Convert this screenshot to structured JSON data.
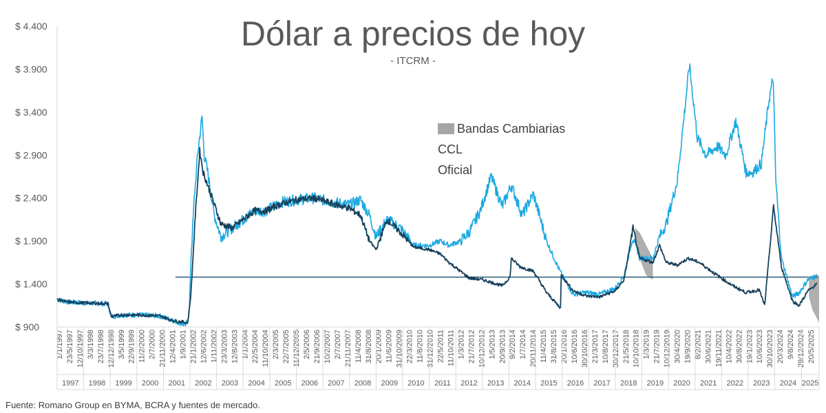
{
  "title": "Dólar a precios de hoy",
  "subtitle": "- ITCRM -",
  "source": "Fuente: Romano Group en BYMA, BCRA y fuentes de mercado.",
  "legend": {
    "band": "Bandas Cambiarias",
    "ccl": "CCL",
    "oficial": "Oficial"
  },
  "colors": {
    "ccl": "#1ba9e1",
    "oficial": "#17415c",
    "band": "#a6a6a6",
    "reference_line": "#1d4e6b",
    "text": "#595959"
  },
  "chart_data": {
    "type": "line",
    "title": "Dólar a precios de hoy",
    "subtitle": "- ITCRM -",
    "ylim": [
      900,
      4400
    ],
    "y_ticks": [
      "$ 900",
      "$ 1.400",
      "$ 1.900",
      "$ 2.400",
      "$ 2.900",
      "$ 3.400",
      "$ 3.900",
      "$ 4.400"
    ],
    "x_range": [
      "1997-01-01",
      "2025-09-01"
    ],
    "x_tick_labels": [
      "1/1/1997",
      "23/5/1997",
      "12/10/1997",
      "3/3/1998",
      "23/7/1998",
      "12/12/1998",
      "3/5/1999",
      "22/9/1999",
      "11/2/2000",
      "2/7/2000",
      "21/11/2000",
      "12/4/2001",
      "1/9/2001",
      "21/1/2002",
      "12/6/2002",
      "1/11/2002",
      "23/3/2003",
      "12/8/2003",
      "1/1/2004",
      "22/5/2004",
      "11/10/2004",
      "2/3/2005",
      "22/7/2005",
      "11/12/2005",
      "2/5/2006",
      "21/9/2006",
      "10/2/2007",
      "2/7/2007",
      "21/11/2007",
      "11/4/2008",
      "31/8/2008",
      "20/1/2009",
      "11/6/2009",
      "31/10/2009",
      "22/3/2010",
      "11/8/2010",
      "31/12/2010",
      "22/5/2011",
      "11/10/2011",
      "1/3/2012",
      "21/7/2012",
      "10/12/2012",
      "1/5/2013",
      "20/9/2013",
      "9/2/2014",
      "1/7/2014",
      "20/11/2014",
      "11/4/2015",
      "31/8/2015",
      "20/1/2016",
      "10/6/2016",
      "30/10/2016",
      "21/3/2017",
      "10/8/2017",
      "30/12/2017",
      "21/5/2018",
      "10/10/2018",
      "1/3/2019",
      "21/7/2019",
      "10/12/2019",
      "30/4/2020",
      "19/9/2020",
      "8/2/2021",
      "30/6/2021",
      "19/11/2021",
      "10/4/2022",
      "30/8/2022",
      "19/1/2023",
      "10/6/2023",
      "30/10/2023",
      "20/3/2024",
      "9/8/2024",
      "29/12/2024",
      "20/5/2025"
    ],
    "x_year_labels": [
      "1997",
      "1998",
      "1999",
      "2000",
      "2001",
      "2002",
      "2003",
      "2004",
      "2005",
      "2006",
      "2007",
      "2008",
      "2009",
      "2010",
      "2011",
      "2012",
      "2013",
      "2014",
      "2015",
      "2016",
      "2017",
      "2018",
      "2019",
      "2020",
      "2021",
      "2022",
      "2023",
      "2024",
      "2025"
    ],
    "reference_line": {
      "y": 1480
    },
    "series": [
      {
        "name": "CCL",
        "points": [
          [
            "1997-01-01",
            1220
          ],
          [
            "1997-06-01",
            1190
          ],
          [
            "1998-01-01",
            1180
          ],
          [
            "1998-12-01",
            1170
          ],
          [
            "1999-01-15",
            1020
          ],
          [
            "1999-06-01",
            1040
          ],
          [
            "2000-01-01",
            1040
          ],
          [
            "2000-11-01",
            1030
          ],
          [
            "2001-06-01",
            970
          ],
          [
            "2001-11-01",
            920
          ],
          [
            "2001-12-20",
            1060
          ],
          [
            "2002-01-15",
            1700
          ],
          [
            "2002-03-01",
            2400
          ],
          [
            "2002-04-15",
            2900
          ],
          [
            "2002-06-15",
            3350
          ],
          [
            "2002-07-15",
            2900
          ],
          [
            "2002-09-01",
            2700
          ],
          [
            "2002-12-01",
            2200
          ],
          [
            "2003-03-01",
            1950
          ],
          [
            "2003-08-01",
            2050
          ],
          [
            "2004-01-01",
            2150
          ],
          [
            "2004-06-01",
            2250
          ],
          [
            "2004-11-01",
            2250
          ],
          [
            "2005-06-01",
            2350
          ],
          [
            "2006-01-01",
            2380
          ],
          [
            "2006-09-01",
            2400
          ],
          [
            "2007-06-01",
            2350
          ],
          [
            "2008-01-01",
            2320
          ],
          [
            "2008-06-01",
            2380
          ],
          [
            "2008-10-01",
            2200
          ],
          [
            "2009-01-01",
            1950
          ],
          [
            "2009-06-01",
            2150
          ],
          [
            "2009-12-01",
            2050
          ],
          [
            "2010-06-01",
            1850
          ],
          [
            "2011-01-01",
            1850
          ],
          [
            "2011-06-01",
            1900
          ],
          [
            "2011-10-01",
            1850
          ],
          [
            "2012-03-01",
            1900
          ],
          [
            "2012-07-01",
            2000
          ],
          [
            "2012-12-01",
            2250
          ],
          [
            "2013-05-01",
            2650
          ],
          [
            "2013-10-01",
            2300
          ],
          [
            "2014-02-01",
            2550
          ],
          [
            "2014-07-01",
            2200
          ],
          [
            "2014-12-01",
            2450
          ],
          [
            "2015-06-01",
            1900
          ],
          [
            "2015-12-01",
            1550
          ],
          [
            "2016-06-01",
            1280
          ],
          [
            "2016-12-01",
            1300
          ],
          [
            "2017-06-01",
            1280
          ],
          [
            "2018-01-01",
            1350
          ],
          [
            "2018-05-01",
            1500
          ],
          [
            "2018-09-01",
            1950
          ],
          [
            "2018-12-01",
            1700
          ],
          [
            "2019-06-01",
            1700
          ],
          [
            "2019-09-01",
            1950
          ],
          [
            "2019-12-01",
            2100
          ],
          [
            "2020-05-01",
            2600
          ],
          [
            "2020-10-15",
            3950
          ],
          [
            "2021-02-01",
            3100
          ],
          [
            "2021-06-01",
            2900
          ],
          [
            "2021-11-01",
            3000
          ],
          [
            "2022-03-01",
            2900
          ],
          [
            "2022-07-15",
            3300
          ],
          [
            "2022-12-01",
            2700
          ],
          [
            "2023-03-01",
            2700
          ],
          [
            "2023-07-01",
            2800
          ],
          [
            "2023-10-15",
            3550
          ],
          [
            "2023-12-10",
            3800
          ],
          [
            "2024-01-15",
            2600
          ],
          [
            "2024-04-01",
            1700
          ],
          [
            "2024-09-01",
            1250
          ],
          [
            "2024-12-01",
            1300
          ],
          [
            "2025-04-01",
            1450
          ],
          [
            "2025-08-01",
            1500
          ]
        ]
      },
      {
        "name": "Oficial",
        "points": [
          [
            "1997-01-01",
            1220
          ],
          [
            "1997-06-01",
            1190
          ],
          [
            "1998-01-01",
            1180
          ],
          [
            "1998-12-01",
            1170
          ],
          [
            "1999-01-15",
            1020
          ],
          [
            "1999-06-01",
            1040
          ],
          [
            "2000-01-01",
            1040
          ],
          [
            "2000-11-01",
            1030
          ],
          [
            "2001-06-01",
            970
          ],
          [
            "2001-12-01",
            950
          ],
          [
            "2002-01-15",
            1300
          ],
          [
            "2002-03-15",
            2200
          ],
          [
            "2002-05-15",
            2950
          ],
          [
            "2002-07-01",
            2700
          ],
          [
            "2002-11-01",
            2400
          ],
          [
            "2003-03-01",
            2100
          ],
          [
            "2003-08-01",
            2050
          ],
          [
            "2004-01-01",
            2150
          ],
          [
            "2004-06-01",
            2250
          ],
          [
            "2004-11-01",
            2250
          ],
          [
            "2005-06-01",
            2330
          ],
          [
            "2006-01-01",
            2380
          ],
          [
            "2006-09-01",
            2400
          ],
          [
            "2007-06-01",
            2330
          ],
          [
            "2008-01-01",
            2280
          ],
          [
            "2008-06-01",
            2200
          ],
          [
            "2008-10-01",
            1900
          ],
          [
            "2009-01-01",
            1800
          ],
          [
            "2009-06-01",
            2150
          ],
          [
            "2009-12-01",
            2000
          ],
          [
            "2010-06-01",
            1830
          ],
          [
            "2011-01-01",
            1800
          ],
          [
            "2011-06-01",
            1750
          ],
          [
            "2011-10-01",
            1650
          ],
          [
            "2012-03-01",
            1550
          ],
          [
            "2012-07-01",
            1470
          ],
          [
            "2013-01-01",
            1450
          ],
          [
            "2013-10-01",
            1380
          ],
          [
            "2014-01-15",
            1480
          ],
          [
            "2014-02-01",
            1700
          ],
          [
            "2014-06-01",
            1600
          ],
          [
            "2014-12-01",
            1550
          ],
          [
            "2015-06-01",
            1300
          ],
          [
            "2015-12-10",
            1120
          ],
          [
            "2015-12-20",
            1500
          ],
          [
            "2016-06-01",
            1320
          ],
          [
            "2016-12-01",
            1260
          ],
          [
            "2017-06-01",
            1250
          ],
          [
            "2018-01-01",
            1320
          ],
          [
            "2018-05-01",
            1450
          ],
          [
            "2018-09-01",
            2050
          ],
          [
            "2018-12-01",
            1700
          ],
          [
            "2019-06-01",
            1650
          ],
          [
            "2019-09-01",
            1850
          ],
          [
            "2019-12-01",
            1650
          ],
          [
            "2020-05-01",
            1620
          ],
          [
            "2020-10-01",
            1700
          ],
          [
            "2021-03-01",
            1650
          ],
          [
            "2021-11-01",
            1500
          ],
          [
            "2022-06-01",
            1380
          ],
          [
            "2022-12-01",
            1300
          ],
          [
            "2023-06-01",
            1330
          ],
          [
            "2023-08-15",
            1150
          ],
          [
            "2023-12-15",
            2300
          ],
          [
            "2024-01-15",
            2100
          ],
          [
            "2024-04-01",
            1600
          ],
          [
            "2024-09-01",
            1200
          ],
          [
            "2024-12-01",
            1150
          ],
          [
            "2025-04-01",
            1320
          ],
          [
            "2025-08-01",
            1400
          ]
        ]
      }
    ],
    "band": {
      "name": "Bandas Cambiarias",
      "segments": [
        [
          [
            "2018-10-01",
            2050,
            1900
          ],
          [
            "2018-12-01",
            2000,
            1700
          ],
          [
            "2019-03-01",
            1850,
            1500
          ],
          [
            "2019-06-01",
            1700,
            1450
          ]
        ],
        [
          [
            "2025-04-15",
            1450,
            1250
          ],
          [
            "2025-06-01",
            1500,
            1100
          ],
          [
            "2025-08-01",
            1500,
            1000
          ],
          [
            "2025-09-01",
            1500,
            950
          ]
        ]
      ]
    }
  }
}
